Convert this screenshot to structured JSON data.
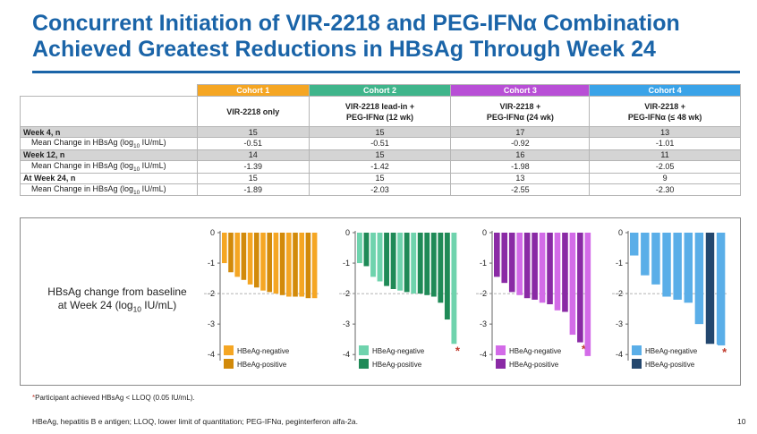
{
  "title_line1": "Concurrent Initiation of VIR-2218 and PEG-IFNα Combination",
  "title_line2": "Achieved Greatest Reductions in HBsAg Through Week 24",
  "table": {
    "cohorts": [
      {
        "name": "Cohort 1",
        "regimen_line1": "VIR-2218 only",
        "regimen_line2": "",
        "color": "#f5a623"
      },
      {
        "name": "Cohort 2",
        "regimen_line1": "VIR-2218 lead-in +",
        "regimen_line2": "PEG-IFNα (12 wk)",
        "color": "#3fb58b"
      },
      {
        "name": "Cohort 3",
        "regimen_line1": "VIR-2218 +",
        "regimen_line2": "PEG-IFNα (24 wk)",
        "color": "#b84fd6"
      },
      {
        "name": "Cohort 4",
        "regimen_line1": "VIR-2218 +",
        "regimen_line2": "PEG-IFNα (≤ 48 wk)",
        "color": "#3aa3e8"
      }
    ],
    "rows": [
      {
        "label": "Week 4, n",
        "values": [
          "15",
          "15",
          "17",
          "13"
        ]
      },
      {
        "label": "Mean Change in HBsAg (log10 IU/mL)",
        "values": [
          "-0.51",
          "-0.51",
          "-0.92",
          "-1.01"
        ]
      },
      {
        "label": "Week 12, n",
        "values": [
          "14",
          "15",
          "16",
          "11"
        ]
      },
      {
        "label": "Mean Change in HBsAg (log10 IU/mL)",
        "values": [
          "-1.39",
          "-1.42",
          "-1.98",
          "-2.05"
        ]
      },
      {
        "label": "At Week 24, n",
        "values": [
          "15",
          "15",
          "13",
          "9"
        ]
      },
      {
        "label": "Mean Change in HBsAg (log10 IU/mL)",
        "values": [
          "-1.89",
          "-2.03",
          "-2.55",
          "-2.30"
        ]
      }
    ]
  },
  "chart_ylabel_line1": "HBsAg change from baseline",
  "chart_ylabel_line2": "at Week 24 (log10 IU/mL)",
  "footnote_star": "*",
  "footnote": "Participant achieved HBsAg < LLOQ (0.05 IU/mL).",
  "abbreviations": "HBeAg, hepatitis B e antigen; LLOQ, lower limit of quantitation; PEG-IFNα, peginterferon alfa-2a.",
  "page_number": "10",
  "chart_data": [
    {
      "type": "bar",
      "ylim": [
        -4.2,
        0
      ],
      "yticks": [
        "0",
        "-1",
        "-2",
        "-3",
        "-4"
      ],
      "reference_line": -2,
      "legend": [
        "HBeAg-negative",
        "HBeAg-positive"
      ],
      "colors": {
        "HBeAg-negative": "#f5a623",
        "HBeAg-positive": "#d28a0a"
      },
      "series": [
        {
          "values": [
            -1.0,
            -1.3,
            -1.45,
            -1.55,
            -1.7,
            -1.8,
            -1.9,
            -1.95,
            -2.0,
            -2.05,
            -2.1,
            -2.1,
            -2.1,
            -2.15,
            -2.15
          ],
          "hbeag": [
            "negative",
            "positive",
            "negative",
            "positive",
            "negative",
            "positive",
            "negative",
            "positive",
            "negative",
            "positive",
            "negative",
            "positive",
            "negative",
            "positive",
            "negative"
          ]
        }
      ],
      "starred": []
    },
    {
      "type": "bar",
      "ylim": [
        -4.2,
        0
      ],
      "yticks": [
        "0",
        "-1",
        "-2",
        "-3",
        "-4"
      ],
      "reference_line": -2,
      "legend": [
        "HBeAg-negative",
        "HBeAg-positive"
      ],
      "colors": {
        "HBeAg-negative": "#6fd3ad",
        "HBeAg-positive": "#1f8a57"
      },
      "series": [
        {
          "values": [
            -1.0,
            -1.1,
            -1.45,
            -1.6,
            -1.75,
            -1.85,
            -1.9,
            -1.95,
            -2.0,
            -2.0,
            -2.05,
            -2.1,
            -2.3,
            -2.85,
            -3.65
          ],
          "hbeag": [
            "negative",
            "positive",
            "negative",
            "negative",
            "positive",
            "positive",
            "negative",
            "positive",
            "negative",
            "positive",
            "positive",
            "positive",
            "positive",
            "positive",
            "negative"
          ]
        }
      ],
      "starred": [
        14
      ]
    },
    {
      "type": "bar",
      "ylim": [
        -4.2,
        0
      ],
      "yticks": [
        "0",
        "-1",
        "-2",
        "-3",
        "-4"
      ],
      "reference_line": -2,
      "legend": [
        "HBeAg-negative",
        "HBeAg-positive"
      ],
      "colors": {
        "HBeAg-negative": "#d36be8",
        "HBeAg-positive": "#8a2aa5"
      },
      "series": [
        {
          "values": [
            -1.45,
            -1.65,
            -1.95,
            -2.05,
            -2.15,
            -2.2,
            -2.3,
            -2.35,
            -2.55,
            -2.6,
            -3.35,
            -3.6,
            -4.05
          ],
          "hbeag": [
            "positive",
            "positive",
            "positive",
            "negative",
            "positive",
            "positive",
            "negative",
            "positive",
            "negative",
            "positive",
            "negative",
            "positive",
            "negative"
          ]
        }
      ],
      "starred": [
        11
      ]
    },
    {
      "type": "bar",
      "ylim": [
        -4.2,
        0
      ],
      "yticks": [
        "0",
        "-1",
        "-2",
        "-3",
        "-4"
      ],
      "reference_line": -2,
      "legend": [
        "HBeAg-negative",
        "HBeAg-positive"
      ],
      "colors": {
        "HBeAg-negative": "#5aaee8",
        "HBeAg-positive": "#23476e"
      },
      "series": [
        {
          "values": [
            -0.75,
            -1.4,
            -1.7,
            -2.1,
            -2.2,
            -2.3,
            -3.0,
            -3.65,
            -3.7
          ],
          "hbeag": [
            "negative",
            "negative",
            "negative",
            "negative",
            "negative",
            "negative",
            "negative",
            "positive",
            "negative"
          ]
        }
      ],
      "starred": [
        8
      ]
    }
  ]
}
